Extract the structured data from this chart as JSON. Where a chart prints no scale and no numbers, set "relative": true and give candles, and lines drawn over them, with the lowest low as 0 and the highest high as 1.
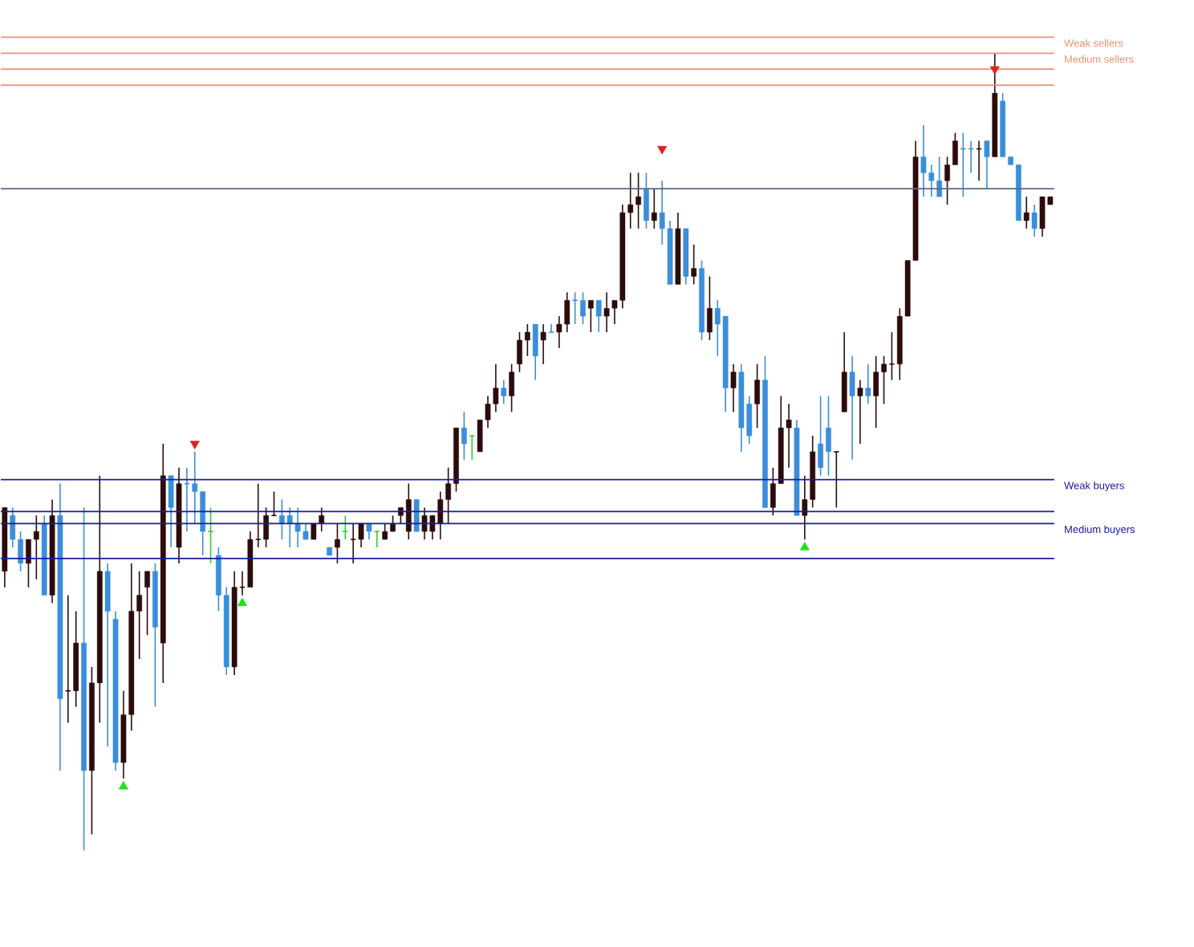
{
  "chart_data": {
    "type": "candlestick",
    "relative": true,
    "categories": [
      null,
      null,
      null,
      null,
      null,
      null,
      null,
      null,
      null,
      null,
      null,
      null,
      null,
      null,
      null,
      null,
      null,
      null,
      null,
      null,
      null,
      null,
      null,
      null,
      null,
      null,
      null,
      null,
      null,
      null,
      null,
      null,
      null,
      null,
      null,
      null,
      null,
      null,
      null,
      null,
      null,
      null,
      null,
      null,
      null,
      null,
      null,
      null,
      null,
      null,
      null,
      null,
      null,
      null,
      null,
      null,
      null,
      null,
      null,
      null,
      null,
      null,
      null,
      null,
      null,
      null,
      null,
      null,
      null,
      null,
      null,
      null,
      null,
      null,
      null,
      null,
      null,
      null,
      null,
      null,
      null,
      null,
      null,
      null,
      null,
      null,
      null,
      null,
      null,
      null,
      null,
      null,
      null,
      null,
      null,
      null,
      null,
      null,
      null,
      null,
      null,
      null,
      null,
      null,
      null,
      null,
      null,
      null,
      null,
      null,
      null,
      null,
      null,
      null,
      null,
      null,
      null,
      null,
      null,
      null,
      null,
      null,
      null,
      null,
      null,
      null,
      null,
      null,
      null,
      null,
      null,
      null,
      null
    ],
    "ohlc": [
      [
        0.35,
        0.43,
        0.33,
        0.43
      ],
      [
        0.42,
        0.43,
        0.38,
        0.39
      ],
      [
        0.39,
        0.4,
        0.35,
        0.36
      ],
      [
        0.36,
        0.39,
        0.33,
        0.39
      ],
      [
        0.39,
        0.42,
        0.34,
        0.4
      ],
      [
        0.41,
        0.42,
        0.32,
        0.32
      ],
      [
        0.32,
        0.44,
        0.31,
        0.42
      ],
      [
        0.42,
        0.46,
        0.1,
        0.19
      ],
      [
        0.2,
        0.32,
        0.16,
        0.2
      ],
      [
        0.2,
        0.3,
        0.18,
        0.26
      ],
      [
        0.26,
        0.43,
        0,
        0.1
      ],
      [
        0.1,
        0.23,
        0.02,
        0.21
      ],
      [
        0.21,
        0.47,
        0.16,
        0.35
      ],
      [
        0.35,
        0.36,
        0.13,
        0.3
      ],
      [
        0.29,
        0.3,
        0.1,
        0.11
      ],
      [
        0.11,
        0.2,
        0.09,
        0.17
      ],
      [
        0.17,
        0.36,
        0.15,
        0.3
      ],
      [
        0.3,
        0.35,
        0.24,
        0.32
      ],
      [
        0.33,
        0.35,
        0.27,
        0.35
      ],
      [
        0.35,
        0.36,
        0.18,
        0.28
      ],
      [
        0.26,
        0.51,
        0.21,
        0.47
      ],
      [
        0.47,
        0.47,
        0.38,
        0.43
      ],
      [
        0.38,
        0.48,
        0.36,
        0.46
      ],
      [
        0.46,
        0.48,
        0.4,
        0.46
      ],
      [
        0.46,
        0.5,
        0.41,
        0.45
      ],
      [
        0.45,
        0.45,
        0.37,
        0.4
      ],
      [
        0.4,
        0.43,
        0.36,
        0.4
      ],
      [
        0.37,
        0.38,
        0.3,
        0.32
      ],
      [
        0.32,
        0.33,
        0.22,
        0.23
      ],
      [
        0.23,
        0.35,
        0.22,
        0.33
      ],
      [
        0.33,
        0.35,
        0.32,
        0.33
      ],
      [
        0.33,
        0.4,
        0.33,
        0.39
      ],
      [
        0.39,
        0.46,
        0.38,
        0.39
      ],
      [
        0.39,
        0.43,
        0.38,
        0.42
      ],
      [
        0.42,
        0.45,
        0.42,
        0.42
      ],
      [
        0.42,
        0.44,
        0.39,
        0.41
      ],
      [
        0.42,
        0.43,
        0.38,
        0.41
      ],
      [
        0.41,
        0.43,
        0.38,
        0.4
      ],
      [
        0.4,
        0.41,
        0.39,
        0.39
      ],
      [
        0.39,
        0.41,
        0.39,
        0.41
      ],
      [
        0.41,
        0.43,
        0.4,
        0.42
      ],
      [
        0.38,
        0.38,
        0.37,
        0.37
      ],
      [
        0.38,
        0.41,
        0.36,
        0.39
      ],
      [
        0.4,
        0.42,
        0.39,
        0.4
      ],
      [
        0.39,
        0.41,
        0.36,
        0.39
      ],
      [
        0.39,
        0.41,
        0.38,
        0.41
      ],
      [
        0.41,
        0.41,
        0.39,
        0.4
      ],
      [
        0.4,
        0.4,
        0.38,
        0.4
      ],
      [
        0.39,
        0.41,
        0.39,
        0.4
      ],
      [
        0.4,
        0.42,
        0.4,
        0.41
      ],
      [
        0.42,
        0.43,
        0.41,
        0.43
      ],
      [
        0.4,
        0.46,
        0.39,
        0.44
      ],
      [
        0.44,
        0.44,
        0.4,
        0.4
      ],
      [
        0.4,
        0.43,
        0.39,
        0.42
      ],
      [
        0.4,
        0.42,
        0.39,
        0.42
      ],
      [
        0.41,
        0.45,
        0.39,
        0.44
      ],
      [
        0.44,
        0.48,
        0.41,
        0.46
      ],
      [
        0.46,
        0.53,
        0.45,
        0.53
      ],
      [
        0.53,
        0.55,
        0.49,
        0.51
      ],
      [
        0.52,
        0.52,
        0.49,
        0.52
      ],
      [
        0.5,
        0.54,
        0.5,
        0.54
      ],
      [
        0.54,
        0.57,
        0.53,
        0.56
      ],
      [
        0.56,
        0.61,
        0.55,
        0.58
      ],
      [
        0.58,
        0.59,
        0.56,
        0.57
      ],
      [
        0.57,
        0.61,
        0.55,
        0.6
      ],
      [
        0.61,
        0.65,
        0.6,
        0.64
      ],
      [
        0.64,
        0.66,
        0.62,
        0.65
      ],
      [
        0.66,
        0.66,
        0.59,
        0.62
      ],
      [
        0.64,
        0.66,
        0.61,
        0.65
      ],
      [
        0.65,
        0.66,
        0.65,
        0.65
      ],
      [
        0.65,
        0.67,
        0.63,
        0.66
      ],
      [
        0.66,
        0.7,
        0.65,
        0.69
      ],
      [
        0.69,
        0.7,
        0.66,
        0.69
      ],
      [
        0.69,
        0.7,
        0.66,
        0.67
      ],
      [
        0.68,
        0.69,
        0.65,
        0.69
      ],
      [
        0.69,
        0.69,
        0.65,
        0.67
      ],
      [
        0.67,
        0.7,
        0.65,
        0.68
      ],
      [
        0.68,
        0.69,
        0.66,
        0.69
      ],
      [
        0.69,
        0.81,
        0.68,
        0.8
      ],
      [
        0.8,
        0.85,
        0.78,
        0.81
      ],
      [
        0.81,
        0.85,
        0.78,
        0.82
      ],
      [
        0.83,
        0.85,
        0.78,
        0.79
      ],
      [
        0.79,
        0.83,
        0.78,
        0.8
      ],
      [
        0.8,
        0.84,
        0.76,
        0.78
      ],
      [
        0.78,
        0.79,
        0.71,
        0.71
      ],
      [
        0.71,
        0.8,
        0.71,
        0.78
      ],
      [
        0.78,
        0.78,
        0.71,
        0.72
      ],
      [
        0.72,
        0.76,
        0.71,
        0.73
      ],
      [
        0.73,
        0.74,
        0.64,
        0.65
      ],
      [
        0.65,
        0.72,
        0.64,
        0.68
      ],
      [
        0.68,
        0.69,
        0.62,
        0.66
      ],
      [
        0.67,
        0.67,
        0.55,
        0.58
      ],
      [
        0.58,
        0.61,
        0.55,
        0.6
      ],
      [
        0.6,
        0.61,
        0.5,
        0.53
      ],
      [
        0.56,
        0.57,
        0.51,
        0.52
      ],
      [
        0.56,
        0.61,
        0.53,
        0.59
      ],
      [
        0.59,
        0.62,
        0.43,
        0.43
      ],
      [
        0.43,
        0.48,
        0.42,
        0.46
      ],
      [
        0.46,
        0.57,
        0.46,
        0.53
      ],
      [
        0.53,
        0.56,
        0.48,
        0.54
      ],
      [
        0.53,
        0.54,
        0.42,
        0.42
      ],
      [
        0.42,
        0.47,
        0.39,
        0.44
      ],
      [
        0.44,
        0.52,
        0.43,
        0.5
      ],
      [
        0.51,
        0.57,
        0.47,
        0.48
      ],
      [
        0.53,
        0.57,
        0.47,
        0.5
      ],
      [
        0.5,
        0.5,
        0.43,
        0.5
      ],
      [
        0.55,
        0.65,
        0.55,
        0.6
      ],
      [
        0.6,
        0.62,
        0.49,
        0.57
      ],
      [
        0.57,
        0.59,
        0.51,
        0.58
      ],
      [
        0.58,
        0.61,
        0.56,
        0.57
      ],
      [
        0.57,
        0.62,
        0.53,
        0.6
      ],
      [
        0.6,
        0.62,
        0.56,
        0.61
      ],
      [
        0.61,
        0.65,
        0.59,
        0.61
      ],
      [
        0.61,
        0.68,
        0.59,
        0.67
      ],
      [
        0.67,
        0.74,
        0.67,
        0.74
      ],
      [
        0.74,
        0.89,
        0.74,
        0.87
      ],
      [
        0.87,
        0.91,
        0.82,
        0.85
      ],
      [
        0.85,
        0.86,
        0.82,
        0.84
      ],
      [
        0.84,
        0.87,
        0.82,
        0.82
      ],
      [
        0.84,
        0.87,
        0.81,
        0.86
      ],
      [
        0.86,
        0.9,
        0.86,
        0.89
      ],
      [
        0.88,
        0.9,
        0.82,
        0.88
      ],
      [
        0.88,
        0.89,
        0.85,
        0.88
      ],
      [
        0.88,
        0.89,
        0.84,
        0.88
      ],
      [
        0.89,
        0.89,
        0.83,
        0.87
      ],
      [
        0.87,
        1,
        0.87,
        0.95
      ],
      [
        0.94,
        0.95,
        0.87,
        0.87
      ],
      [
        0.87,
        0.87,
        0.86,
        0.86
      ],
      [
        0.86,
        0.86,
        0.79,
        0.79
      ],
      [
        0.79,
        0.82,
        0.78,
        0.8
      ],
      [
        0.8,
        0.81,
        0.77,
        0.78
      ],
      [
        0.78,
        0.82,
        0.77,
        0.82
      ],
      [
        0.81,
        0.82,
        0.81,
        0.82
      ]
    ],
    "colors": [
      "#2b0b0b",
      "#3a8edb",
      "#3a8edb",
      "#2b0b0b",
      "#2b0b0b",
      "#3a8edb",
      "#2b0b0b",
      "#3a8edb",
      "#2b0b0b",
      "#2b0b0b",
      "#3a8edb",
      "#2b0b0b",
      "#2b0b0b",
      "#3a8edb",
      "#3a8edb",
      "#2b0b0b",
      "#2b0b0b",
      "#2b0b0b",
      "#2b0b0b",
      "#3a8edb",
      "#2b0b0b",
      "#3a8edb",
      "#2b0b0b",
      "#3a8edb",
      "#3a8edb",
      "#3a8edb",
      "#33cc33",
      "#3a8edb",
      "#3a8edb",
      "#2b0b0b",
      "#2b0b0b",
      "#2b0b0b",
      "#2b0b0b",
      "#2b0b0b",
      "#2b0b0b",
      "#3a8edb",
      "#3a8edb",
      "#3a8edb",
      "#3a8edb",
      "#2b0b0b",
      "#2b0b0b",
      "#3a8edb",
      "#2b0b0b",
      "#33cc33",
      "#2b0b0b",
      "#2b0b0b",
      "#3a8edb",
      "#33cc33",
      "#2b0b0b",
      "#2b0b0b",
      "#2b0b0b",
      "#2b0b0b",
      "#3a8edb",
      "#2b0b0b",
      "#2b0b0b",
      "#2b0b0b",
      "#2b0b0b",
      "#2b0b0b",
      "#3a8edb",
      "#33cc33",
      "#2b0b0b",
      "#2b0b0b",
      "#2b0b0b",
      "#3a8edb",
      "#2b0b0b",
      "#2b0b0b",
      "#2b0b0b",
      "#3a8edb",
      "#2b0b0b",
      "#3a8edb",
      "#2b0b0b",
      "#2b0b0b",
      "#3a8edb",
      "#3a8edb",
      "#2b0b0b",
      "#3a8edb",
      "#2b0b0b",
      "#2b0b0b",
      "#2b0b0b",
      "#2b0b0b",
      "#2b0b0b",
      "#3a8edb",
      "#2b0b0b",
      "#3a8edb",
      "#3a8edb",
      "#2b0b0b",
      "#3a8edb",
      "#2b0b0b",
      "#3a8edb",
      "#2b0b0b",
      "#3a8edb",
      "#3a8edb",
      "#2b0b0b",
      "#3a8edb",
      "#3a8edb",
      "#2b0b0b",
      "#3a8edb",
      "#2b0b0b",
      "#2b0b0b",
      "#2b0b0b",
      "#3a8edb",
      "#2b0b0b",
      "#2b0b0b",
      "#3a8edb",
      "#3a8edb",
      "#2b0b0b",
      "#2b0b0b",
      "#3a8edb",
      "#2b0b0b",
      "#3a8edb",
      "#2b0b0b",
      "#2b0b0b",
      "#2b0b0b",
      "#2b0b0b",
      "#2b0b0b",
      "#2b0b0b",
      "#3a8edb",
      "#3a8edb",
      "#3a8edb",
      "#2b0b0b",
      "#2b0b0b",
      "#3a8edb",
      "#3a8edb",
      "#2b0b0b",
      "#3a8edb",
      "#2b0b0b",
      "#3a8edb",
      "#3a8edb",
      "#3a8edb",
      "#2b0b0b",
      "#3a8edb",
      "#2b0b0b",
      "#2b0b0b"
    ],
    "series": [
      {
        "type": "scatter",
        "marker": "triangle",
        "color": "#e02020",
        "values": [
          null,
          null,
          null,
          null,
          null,
          null,
          null,
          null,
          null,
          null,
          null,
          null,
          null,
          null,
          null,
          null,
          null,
          null,
          null,
          null,
          null,
          null,
          null,
          null,
          0.51,
          null,
          null,
          null,
          null,
          null,
          null,
          null,
          null,
          null,
          null,
          null,
          null,
          null,
          null,
          null,
          null,
          null,
          null,
          null,
          null,
          null,
          null,
          null,
          null,
          null,
          null,
          null,
          null,
          null,
          null,
          null,
          null,
          null,
          null,
          null,
          null,
          null,
          null,
          null,
          null,
          null,
          null,
          null,
          null,
          null,
          null,
          null,
          null,
          null,
          null,
          null,
          null,
          null,
          null,
          null,
          null,
          null,
          null,
          0.88,
          null,
          null,
          null,
          null,
          null,
          null,
          null,
          null,
          null,
          null,
          null,
          null,
          null,
          null,
          null,
          null,
          null,
          null,
          null,
          null,
          null,
          null,
          null,
          null,
          null,
          null,
          null,
          null,
          null,
          null,
          null,
          null,
          null,
          null,
          null,
          null,
          null,
          null,
          null,
          null,
          null,
          0.98,
          null,
          null,
          null,
          null,
          null,
          null,
          null
        ]
      },
      {
        "type": "scatter",
        "marker": "triangle",
        "color": "#22dd22",
        "values": [
          null,
          null,
          null,
          null,
          null,
          null,
          null,
          null,
          null,
          null,
          null,
          null,
          null,
          null,
          null,
          0.08,
          null,
          null,
          null,
          null,
          null,
          null,
          null,
          null,
          null,
          null,
          null,
          null,
          null,
          null,
          0.31,
          null,
          null,
          null,
          null,
          null,
          null,
          null,
          null,
          null,
          null,
          null,
          null,
          null,
          null,
          null,
          null,
          null,
          null,
          null,
          null,
          null,
          null,
          null,
          null,
          null,
          null,
          null,
          null,
          null,
          null,
          null,
          null,
          null,
          null,
          null,
          null,
          null,
          null,
          null,
          null,
          null,
          null,
          null,
          null,
          null,
          null,
          null,
          null,
          null,
          null,
          null,
          null,
          null,
          null,
          null,
          null,
          null,
          null,
          null,
          null,
          null,
          null,
          null,
          null,
          null,
          null,
          null,
          null,
          null,
          null,
          0.38,
          null,
          null,
          null,
          null,
          null,
          null,
          null,
          null,
          null,
          null,
          null,
          null,
          null,
          null,
          null,
          null,
          null,
          null,
          null,
          null,
          null,
          null,
          null,
          null,
          null,
          null,
          null,
          null,
          null,
          null,
          null
        ]
      }
    ],
    "ref_lines": [
      {
        "axis": "y",
        "value": 1.02,
        "label": "Weak sellers",
        "color": "#f09070"
      },
      {
        "axis": "y",
        "value": 1.0,
        "label": "Medium sellers",
        "color": "#f09070"
      },
      {
        "axis": "y",
        "value": 0.98,
        "color": "#f09070"
      },
      {
        "axis": "y",
        "value": 0.96,
        "color": "#f09070"
      },
      {
        "axis": "y",
        "value": 0.83,
        "color": "#5a6a80"
      },
      {
        "axis": "y",
        "value": 0.465,
        "label": "Weak buyers",
        "color": "#1a1aa0"
      },
      {
        "axis": "y",
        "value": 0.425,
        "color": "#1a1aa0"
      },
      {
        "axis": "y",
        "value": 0.41,
        "label": "Medium buyers",
        "color": "#1a1aa0"
      },
      {
        "axis": "y",
        "value": 0.366,
        "color": "#1a1aa0"
      }
    ]
  }
}
